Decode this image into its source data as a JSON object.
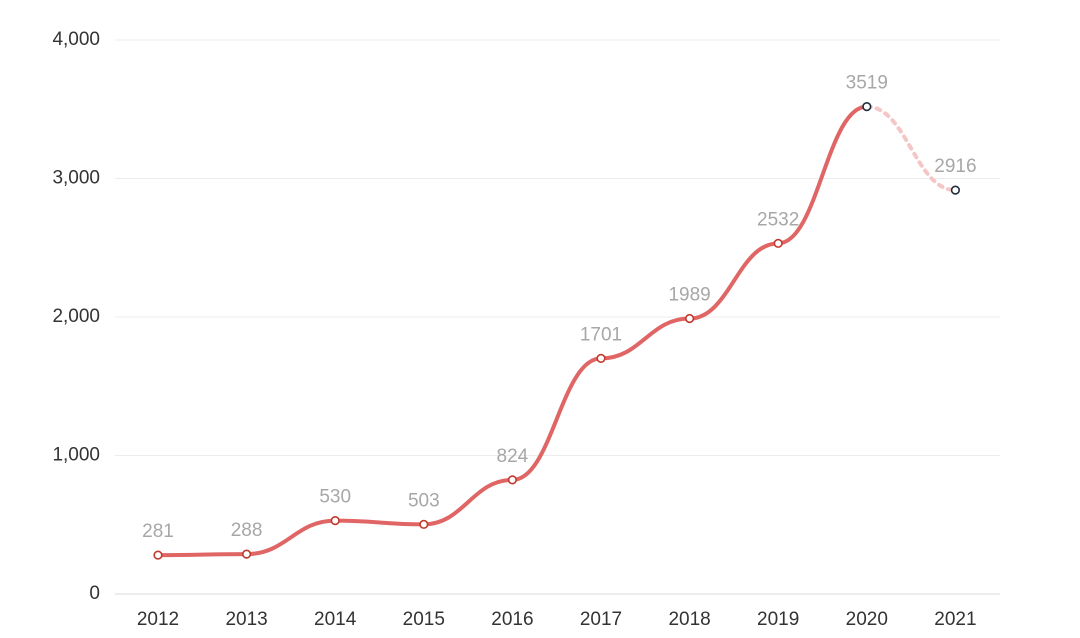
{
  "chart_data": {
    "type": "line",
    "title": "",
    "xlabel": "",
    "ylabel": "",
    "categories": [
      "2012",
      "2013",
      "2014",
      "2015",
      "2016",
      "2017",
      "2018",
      "2019",
      "2020",
      "2021"
    ],
    "ylim": [
      0,
      4000
    ],
    "yticks": [
      0,
      1000,
      2000,
      3000,
      4000
    ],
    "ytick_labels": [
      "0",
      "1,000",
      "2,000",
      "3,000",
      "4,000"
    ],
    "grid": true,
    "legend": "none",
    "series": [
      {
        "values": [
          281,
          288,
          530,
          503,
          824,
          1701,
          1989,
          2532,
          3519,
          2916
        ],
        "data_labels": [
          "281",
          "288",
          "530",
          "503",
          "824",
          "1701",
          "1989",
          "2532",
          "3519",
          "2916"
        ],
        "projected_from_index": 8
      }
    ],
    "colors": {
      "line": "#e06666",
      "projected_line": "#f4c6c6",
      "marker_fill": "#ffffff",
      "marker_stroke": "#c0392b",
      "projected_marker_stroke": "#1f2d3d"
    }
  }
}
